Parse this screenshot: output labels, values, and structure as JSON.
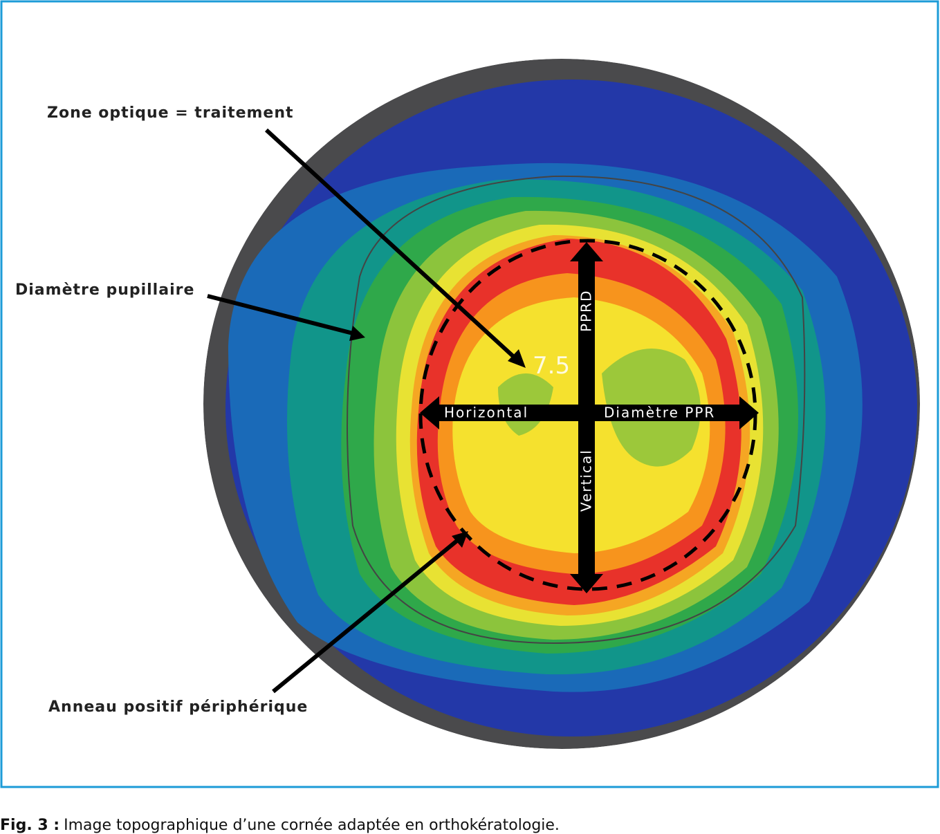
{
  "figure": {
    "annotations": [
      "Zone optique = traitement",
      "Diamètre pupillaire",
      "Anneau positif périphérique"
    ],
    "axis_labels": {
      "horizontal": "Horizontal",
      "diameter": "Diamètre PPR",
      "pprd": "PPRD",
      "vertical": "Vertical"
    },
    "map_value": "7.5"
  },
  "caption": {
    "label": "Fig. 3 :",
    "text": "Image topographique d’une cornée adaptée en orthokératologie."
  }
}
